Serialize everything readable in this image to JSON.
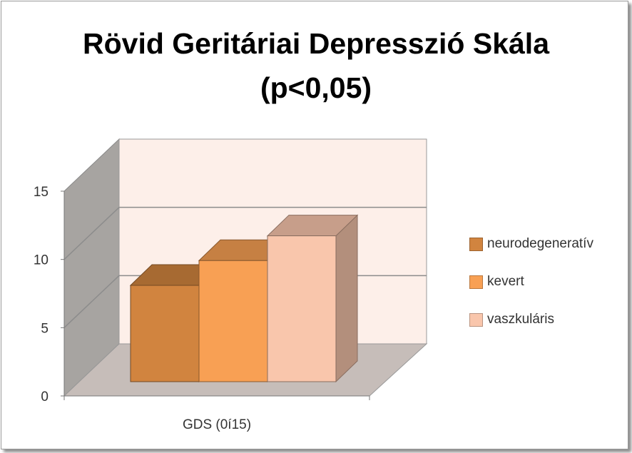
{
  "chart_data": {
    "type": "bar",
    "title": "Rövid Geritáriai Depresszió Skála",
    "subtitle": "(p<0,05)",
    "categories": [
      "GDS (0í15)"
    ],
    "series": [
      {
        "name": "neurodegeneratív",
        "values": [
          7.0
        ],
        "color": "#d1843f"
      },
      {
        "name": "kevert",
        "values": [
          8.8
        ],
        "color": "#f8a054"
      },
      {
        "name": "vaszkuláris",
        "values": [
          10.6
        ],
        "color": "#f9c6ac"
      }
    ],
    "ylim": [
      0,
      15
    ],
    "yticks": [
      "0",
      "5",
      "10",
      "15"
    ],
    "grid": true,
    "three_d": true,
    "legend_position": "right",
    "colors": {
      "back_wall": "#fdefe9",
      "side_wall": "#a7a4a1",
      "floor": "#c6bdb9"
    }
  }
}
